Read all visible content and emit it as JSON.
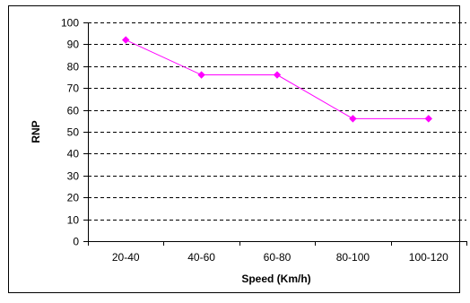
{
  "chart_data": {
    "type": "line",
    "title": "",
    "xlabel": "Speed (Km/h)",
    "ylabel": "RNP",
    "categories": [
      "20-40",
      "40-60",
      "60-80",
      "80-100",
      "100-120"
    ],
    "values": [
      92,
      76,
      76,
      56,
      56
    ],
    "ylim": [
      0,
      100
    ],
    "yticks": [
      0,
      10,
      20,
      30,
      40,
      50,
      60,
      70,
      80,
      90,
      100
    ],
    "grid": "horizontal dashed",
    "legend": "none",
    "series_color": "#ff00ff",
    "axis_color": "#000000"
  }
}
